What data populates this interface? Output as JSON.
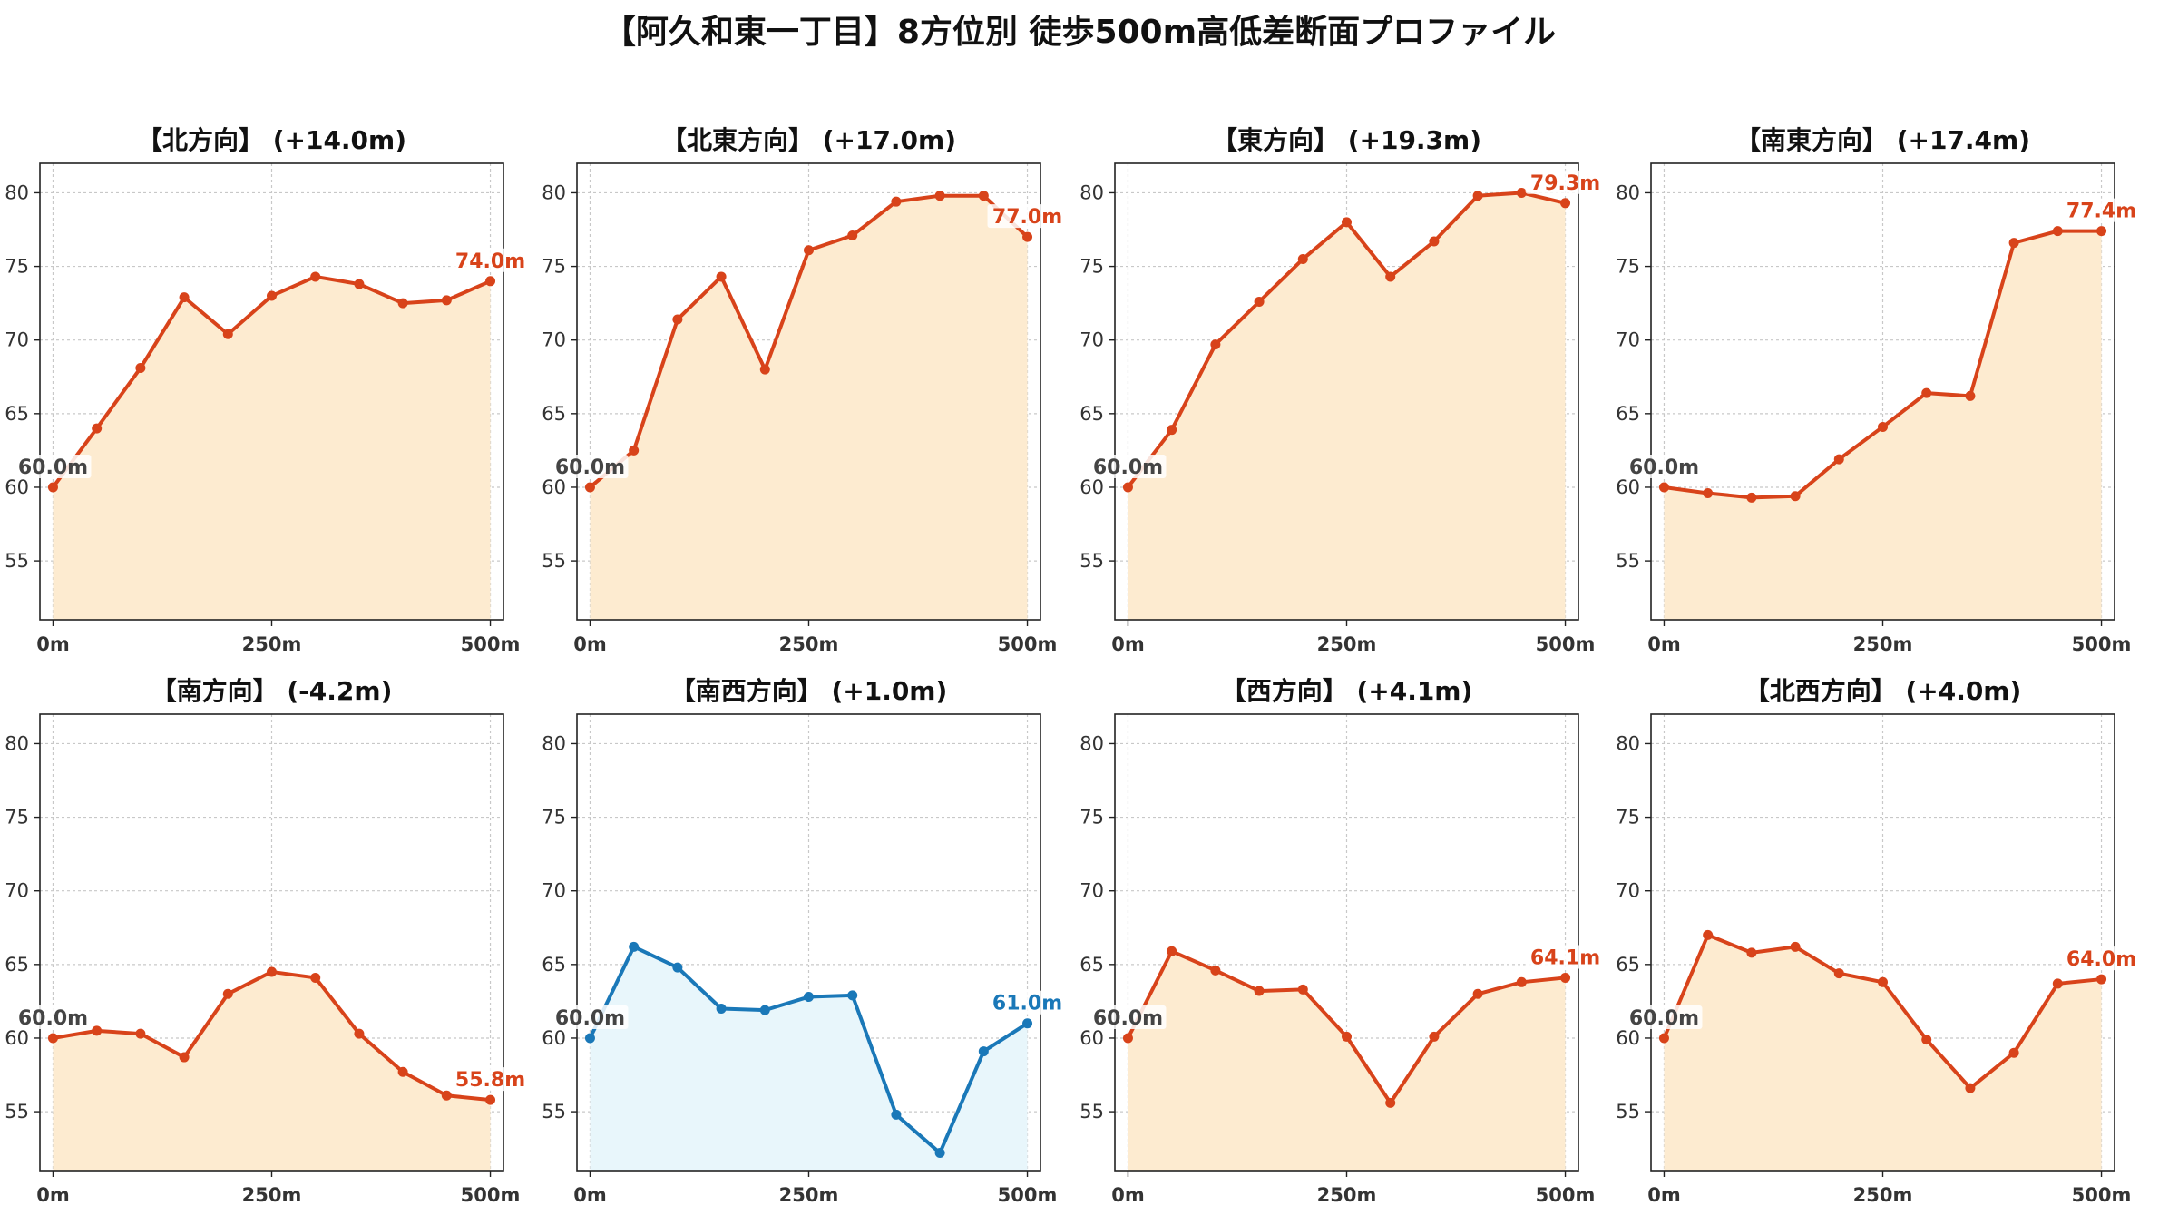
{
  "title": "【阿久和東一丁目】8方位別 徒歩500m高低差断面プロファイル",
  "colors": {
    "uphill_line": "#d8431a",
    "uphill_fill": "#fdebd0",
    "downhill_line": "#1a78b8",
    "downhill_fill": "#e8f6fb",
    "start_label": "#444444"
  },
  "chart_data": [
    {
      "type": "area",
      "title": "【北方向】 (+14.0m)",
      "x": [
        0,
        50,
        100,
        150,
        200,
        250,
        300,
        350,
        400,
        450,
        500
      ],
      "xticks": [
        "0m",
        "250m",
        "500m"
      ],
      "xtick_values": [
        0,
        250,
        500
      ],
      "yticks": [
        55,
        60,
        65,
        70,
        75,
        80
      ],
      "ylim": [
        51,
        82
      ],
      "xlim": [
        -15,
        515
      ],
      "grid": true,
      "scheme": "uphill",
      "series": [
        {
          "values": [
            60.0,
            64.0,
            68.1,
            72.9,
            70.4,
            73.0,
            74.3,
            73.8,
            72.5,
            72.7,
            74.0
          ]
        }
      ],
      "start_label": "60.0m",
      "end_label": "74.0m"
    },
    {
      "type": "area",
      "title": "【北東方向】 (+17.0m)",
      "x": [
        0,
        50,
        100,
        150,
        200,
        250,
        300,
        350,
        400,
        450,
        500
      ],
      "xticks": [
        "0m",
        "250m",
        "500m"
      ],
      "xtick_values": [
        0,
        250,
        500
      ],
      "yticks": [
        55,
        60,
        65,
        70,
        75,
        80
      ],
      "ylim": [
        51,
        82
      ],
      "xlim": [
        -15,
        515
      ],
      "grid": true,
      "scheme": "uphill",
      "series": [
        {
          "values": [
            60.0,
            62.5,
            71.4,
            74.3,
            68.0,
            76.1,
            77.1,
            79.4,
            79.8,
            79.8,
            77.0
          ]
        }
      ],
      "start_label": "60.0m",
      "end_label": "77.0m"
    },
    {
      "type": "area",
      "title": "【東方向】 (+19.3m)",
      "x": [
        0,
        50,
        100,
        150,
        200,
        250,
        300,
        350,
        400,
        450,
        500
      ],
      "xticks": [
        "0m",
        "250m",
        "500m"
      ],
      "xtick_values": [
        0,
        250,
        500
      ],
      "yticks": [
        55,
        60,
        65,
        70,
        75,
        80
      ],
      "ylim": [
        51,
        82
      ],
      "xlim": [
        -15,
        515
      ],
      "grid": true,
      "scheme": "uphill",
      "series": [
        {
          "values": [
            60.0,
            63.9,
            69.7,
            72.6,
            75.5,
            78.0,
            74.3,
            76.7,
            79.8,
            80.0,
            79.3
          ]
        }
      ],
      "start_label": "60.0m",
      "end_label": "79.3m"
    },
    {
      "type": "area",
      "title": "【南東方向】 (+17.4m)",
      "x": [
        0,
        50,
        100,
        150,
        200,
        250,
        300,
        350,
        400,
        450,
        500
      ],
      "xticks": [
        "0m",
        "250m",
        "500m"
      ],
      "xtick_values": [
        0,
        250,
        500
      ],
      "yticks": [
        55,
        60,
        65,
        70,
        75,
        80
      ],
      "ylim": [
        51,
        82
      ],
      "xlim": [
        -15,
        515
      ],
      "grid": true,
      "scheme": "uphill",
      "series": [
        {
          "values": [
            60.0,
            59.6,
            59.3,
            59.4,
            61.9,
            64.1,
            66.4,
            66.2,
            76.6,
            77.4,
            77.4
          ]
        }
      ],
      "start_label": "60.0m",
      "end_label": "77.4m"
    },
    {
      "type": "area",
      "title": "【南方向】 (-4.2m)",
      "x": [
        0,
        50,
        100,
        150,
        200,
        250,
        300,
        350,
        400,
        450,
        500
      ],
      "xticks": [
        "0m",
        "250m",
        "500m"
      ],
      "xtick_values": [
        0,
        250,
        500
      ],
      "yticks": [
        55,
        60,
        65,
        70,
        75,
        80
      ],
      "ylim": [
        51,
        82
      ],
      "xlim": [
        -15,
        515
      ],
      "grid": true,
      "scheme": "uphill",
      "series": [
        {
          "values": [
            60.0,
            60.5,
            60.3,
            58.7,
            63.0,
            64.5,
            64.1,
            60.3,
            57.7,
            56.1,
            55.8
          ]
        }
      ],
      "start_label": "60.0m",
      "end_label": "55.8m"
    },
    {
      "type": "area",
      "title": "【南西方向】 (+1.0m)",
      "x": [
        0,
        50,
        100,
        150,
        200,
        250,
        300,
        350,
        400,
        450,
        500
      ],
      "xticks": [
        "0m",
        "250m",
        "500m"
      ],
      "xtick_values": [
        0,
        250,
        500
      ],
      "yticks": [
        55,
        60,
        65,
        70,
        75,
        80
      ],
      "ylim": [
        51,
        82
      ],
      "xlim": [
        -15,
        515
      ],
      "grid": true,
      "scheme": "downhill",
      "series": [
        {
          "values": [
            60.0,
            66.2,
            64.8,
            62.0,
            61.9,
            62.8,
            62.9,
            54.8,
            52.2,
            59.1,
            61.0
          ]
        }
      ],
      "start_label": "60.0m",
      "end_label": "61.0m"
    },
    {
      "type": "area",
      "title": "【西方向】 (+4.1m)",
      "x": [
        0,
        50,
        100,
        150,
        200,
        250,
        300,
        350,
        400,
        450,
        500
      ],
      "xticks": [
        "0m",
        "250m",
        "500m"
      ],
      "xtick_values": [
        0,
        250,
        500
      ],
      "yticks": [
        55,
        60,
        65,
        70,
        75,
        80
      ],
      "ylim": [
        51,
        82
      ],
      "xlim": [
        -15,
        515
      ],
      "grid": true,
      "scheme": "uphill",
      "series": [
        {
          "values": [
            60.0,
            65.9,
            64.6,
            63.2,
            63.3,
            60.1,
            55.6,
            60.1,
            63.0,
            63.8,
            64.1
          ]
        }
      ],
      "start_label": "60.0m",
      "end_label": "64.1m"
    },
    {
      "type": "area",
      "title": "【北西方向】 (+4.0m)",
      "x": [
        0,
        50,
        100,
        150,
        200,
        250,
        300,
        350,
        400,
        450,
        500
      ],
      "xticks": [
        "0m",
        "250m",
        "500m"
      ],
      "xtick_values": [
        0,
        250,
        500
      ],
      "yticks": [
        55,
        60,
        65,
        70,
        75,
        80
      ],
      "ylim": [
        51,
        82
      ],
      "xlim": [
        -15,
        515
      ],
      "grid": true,
      "scheme": "uphill",
      "series": [
        {
          "values": [
            60.0,
            67.0,
            65.8,
            66.2,
            64.4,
            63.8,
            59.9,
            56.6,
            59.0,
            63.7,
            64.0
          ]
        }
      ],
      "start_label": "60.0m",
      "end_label": "64.0m"
    }
  ]
}
